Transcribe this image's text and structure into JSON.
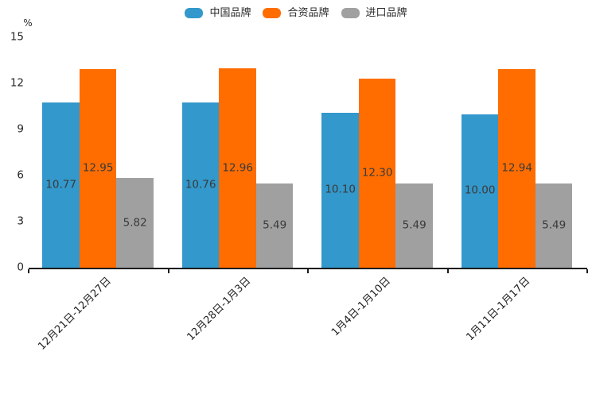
{
  "chart_data": {
    "type": "bar",
    "title": "",
    "xlabel": "",
    "ylabel": "%",
    "ylim": [
      0,
      15
    ],
    "yticks": [
      0,
      3,
      6,
      9,
      12,
      15
    ],
    "grid": false,
    "legend_position": "top",
    "value_labels": true,
    "value_label_decimals": 2,
    "categories": [
      "12月21日-12月27日",
      "12月28日-1月3日",
      "1月4日-1月10日",
      "1月11日-1月17日"
    ],
    "series": [
      {
        "name": "中国品牌",
        "color": "#3398CB",
        "values": [
          10.77,
          10.76,
          10.1,
          10.0
        ]
      },
      {
        "name": "合资品牌",
        "color": "#FF6D00",
        "values": [
          12.95,
          12.96,
          12.3,
          12.94
        ]
      },
      {
        "name": "进口品牌",
        "color": "#A0A0A0",
        "values": [
          5.82,
          5.49,
          5.49,
          5.49
        ]
      }
    ],
    "colors": {
      "axis": "#1c1c1c",
      "tick_label": "#262626",
      "value_label": "#3a3a3a",
      "background": "#ffffff"
    }
  }
}
